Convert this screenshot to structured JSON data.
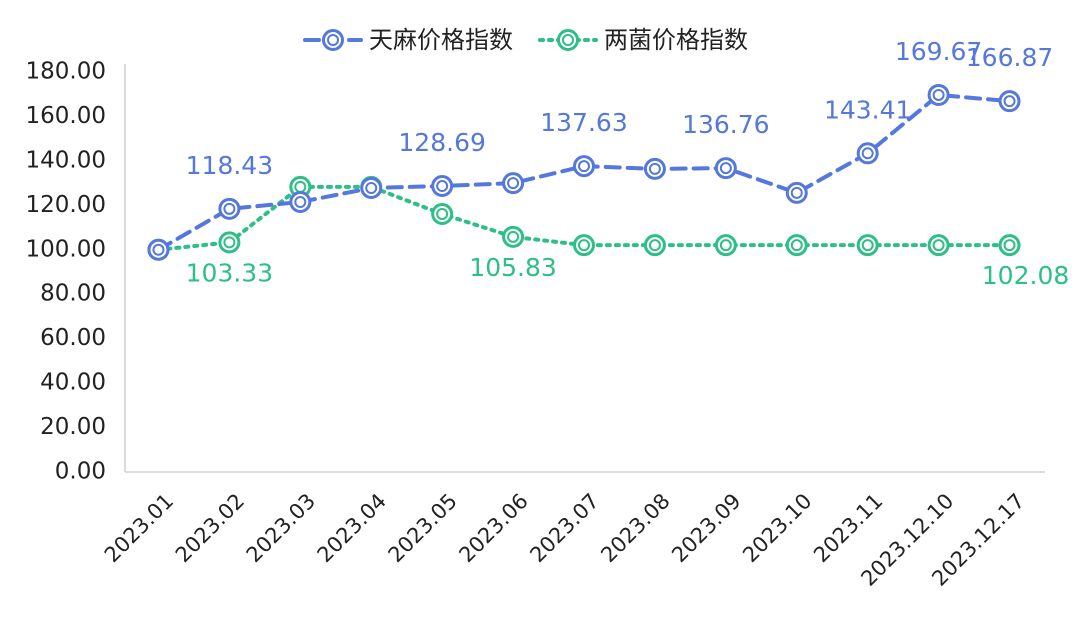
{
  "chart_data": {
    "type": "line",
    "categories": [
      "2023.01",
      "2023.02",
      "2023.03",
      "2023.04",
      "2023.05",
      "2023.06",
      "2023.07",
      "2023.08",
      "2023.09",
      "2023.10",
      "2023.11",
      "2023.12.10",
      "2023.12.17"
    ],
    "series": [
      {
        "name": "天麻价格指数",
        "color": "#5478dc",
        "dash": "dashed",
        "values": [
          100,
          118.43,
          121.5,
          127.8,
          128.69,
          130.0,
          137.63,
          136.4,
          136.76,
          125.6,
          143.41,
          169.67,
          166.87
        ],
        "value_labels": [
          null,
          "118.43",
          null,
          null,
          "128.69",
          null,
          "137.63",
          null,
          "136.76",
          null,
          "143.41",
          "169.67",
          "166.87"
        ]
      },
      {
        "name": "两菌价格指数",
        "color": "#2dbf86",
        "dash": "dotted",
        "values": [
          100,
          103.33,
          128.3,
          128.3,
          116.1,
          105.83,
          102.08,
          102.08,
          102.08,
          102.08,
          102.08,
          102.08,
          102.08
        ],
        "value_labels": [
          null,
          "103.33",
          null,
          null,
          null,
          "105.83",
          null,
          null,
          null,
          null,
          null,
          null,
          "102.08"
        ]
      }
    ],
    "ylim": [
      0,
      180
    ],
    "yticks": [
      {
        "value": 0,
        "label": "0.00"
      },
      {
        "value": 20,
        "label": "20.00"
      },
      {
        "value": 40,
        "label": "40.00"
      },
      {
        "value": 60,
        "label": "60.00"
      },
      {
        "value": 80,
        "label": "80.00"
      },
      {
        "value": 100,
        "label": "100.00"
      },
      {
        "value": 120,
        "label": "120.00"
      },
      {
        "value": 140,
        "label": "140.00"
      },
      {
        "value": 160,
        "label": "160.00"
      },
      {
        "value": 180,
        "label": "180.00"
      }
    ],
    "legend": "top",
    "grid": false
  }
}
